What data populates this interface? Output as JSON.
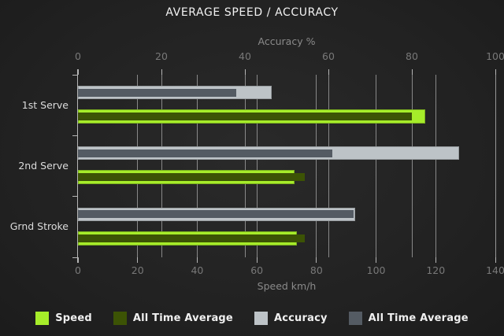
{
  "title": "AVERAGE SPEED / ACCURACY",
  "chart_data": {
    "type": "bar",
    "orientation": "horizontal",
    "categories": [
      "1st Serve",
      "2nd Serve",
      "Grnd Stroke"
    ],
    "top_axis": {
      "label": "Accuracy %",
      "range": [
        0,
        100
      ],
      "ticks": [
        0,
        20,
        40,
        60,
        80,
        100
      ]
    },
    "bottom_axis": {
      "label": "Speed km/h",
      "range": [
        0,
        140
      ],
      "ticks": [
        0,
        20,
        40,
        60,
        80,
        100,
        120,
        140
      ]
    },
    "grid": true,
    "legend_position": "bottom",
    "series": [
      {
        "name": "Speed",
        "axis": "bottom",
        "color": "#a6ec2a",
        "role": "speed",
        "values": [
          116,
          72,
          73
        ]
      },
      {
        "name": "All Time Average",
        "axis": "bottom",
        "color": "#3c5305",
        "role": "speed-avg",
        "values": [
          112,
          76,
          76
        ]
      },
      {
        "name": "Accuracy",
        "axis": "top",
        "color": "#bdc3c7",
        "role": "accuracy",
        "values": [
          46,
          91,
          66
        ]
      },
      {
        "name": "All Time Average",
        "axis": "top",
        "color": "#545b63",
        "role": "accuracy-avg",
        "values": [
          38,
          61,
          66
        ]
      }
    ]
  },
  "colors": {
    "background": "#1f1f1f",
    "gridline": "#9a9a9a",
    "axis": "#b5b5b5",
    "tick_label": "#787878",
    "category_label": "#dcdcdc",
    "title": "#f2f2f2"
  }
}
